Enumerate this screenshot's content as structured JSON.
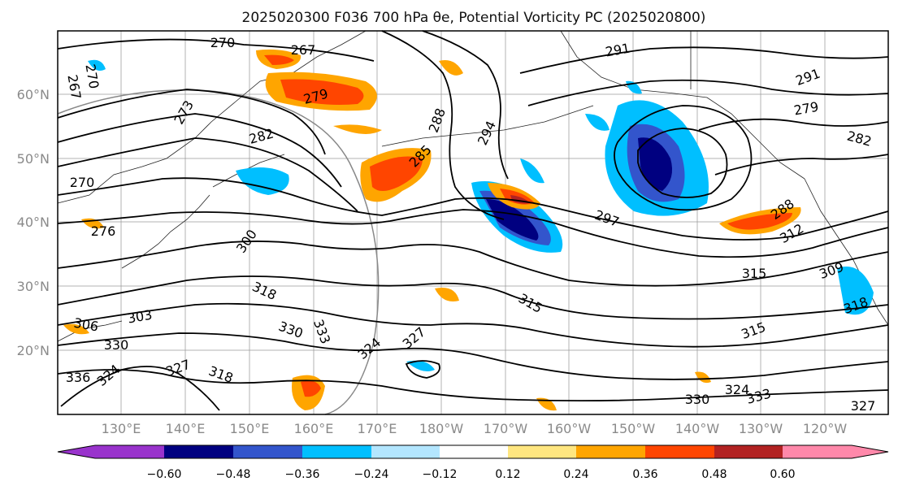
{
  "title": "2025020300 F036 700 hPa θe, Potential Vorticity PC (2025020800)",
  "lat_ticks": [
    "60°N",
    "50°N",
    "40°N",
    "30°N",
    "20°N"
  ],
  "lon_ticks": [
    "130°E",
    "140°E",
    "150°E",
    "160°E",
    "170°E",
    "180°W",
    "170°W",
    "160°W",
    "150°W",
    "140°W",
    "130°W",
    "120°W"
  ],
  "colorbar": {
    "tick_labels": [
      "−0.60",
      "−0.48",
      "−0.36",
      "−0.24",
      "−0.12",
      "0.12",
      "0.24",
      "0.36",
      "0.48",
      "0.60"
    ],
    "colors": [
      "#9933cc",
      "#000080",
      "#3355cc",
      "#00bfff",
      "#b3e6ff",
      "#ffffff",
      "#ffe680",
      "#ffa500",
      "#ff4500",
      "#b22222",
      "#ff88aa"
    ]
  },
  "contour_labels": [
    "270",
    "267",
    "270",
    "267",
    "273",
    "279",
    "282",
    "270",
    "276",
    "300",
    "318",
    "303",
    "306",
    "330",
    "336",
    "324",
    "327",
    "318",
    "333",
    "330",
    "324",
    "327",
    "288",
    "285",
    "294",
    "291",
    "291",
    "297",
    "279",
    "282",
    "288",
    "312",
    "315",
    "309",
    "315",
    "318",
    "315",
    "324",
    "330",
    "333",
    "327"
  ],
  "pv_colors": {
    "neg_strong": "#000080",
    "neg_mid": "#3355cc",
    "neg_weak": "#00bfff",
    "neg_faint": "#b3e6ff",
    "pos_faint": "#ffe680",
    "pos_weak": "#ffa500",
    "pos_mid": "#ff4500",
    "pos_strong": "#b22222"
  }
}
